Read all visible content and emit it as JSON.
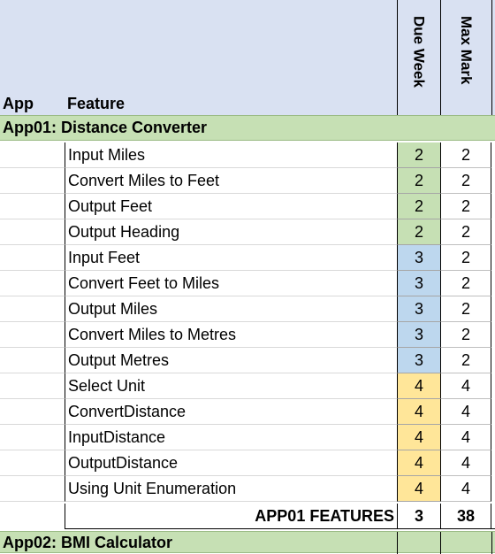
{
  "header": {
    "app_col": "App",
    "feature_col": "Feature",
    "due_week_col": "Due Week",
    "max_mark_col": "Max Mark"
  },
  "colors": {
    "header_bg": "#d9e1f2",
    "section_bg": "#c6e0b4",
    "week2": "#c6e0b4",
    "week3": "#bdd7ee",
    "week4": "#ffe699"
  },
  "sections": [
    {
      "title": "App01: Distance Converter",
      "rows": [
        {
          "feature": "Input Miles",
          "due_week": "2",
          "max_mark": "2"
        },
        {
          "feature": "Convert Miles to Feet",
          "due_week": "2",
          "max_mark": "2"
        },
        {
          "feature": "Output Feet",
          "due_week": "2",
          "max_mark": "2"
        },
        {
          "feature": "Output Heading",
          "due_week": "2",
          "max_mark": "2"
        },
        {
          "feature": "Input Feet",
          "due_week": "3",
          "max_mark": "2"
        },
        {
          "feature": "Convert Feet to Miles",
          "due_week": "3",
          "max_mark": "2"
        },
        {
          "feature": "Output Miles",
          "due_week": "3",
          "max_mark": "2"
        },
        {
          "feature": "Convert Miles to Metres",
          "due_week": "3",
          "max_mark": "2"
        },
        {
          "feature": "Output Metres",
          "due_week": "3",
          "max_mark": "2"
        },
        {
          "feature": "Select Unit",
          "due_week": "4",
          "max_mark": "4"
        },
        {
          "feature": "ConvertDistance",
          "due_week": "4",
          "max_mark": "4"
        },
        {
          "feature": "InputDistance",
          "due_week": "4",
          "max_mark": "4"
        },
        {
          "feature": "OutputDistance",
          "due_week": "4",
          "max_mark": "4"
        },
        {
          "feature": "Using Unit Enumeration",
          "due_week": "4",
          "max_mark": "4"
        }
      ],
      "total": {
        "label": "APP01 FEATURES",
        "due_week": "3",
        "max_mark": "38"
      }
    },
    {
      "title": "App02: BMI Calculator"
    }
  ]
}
